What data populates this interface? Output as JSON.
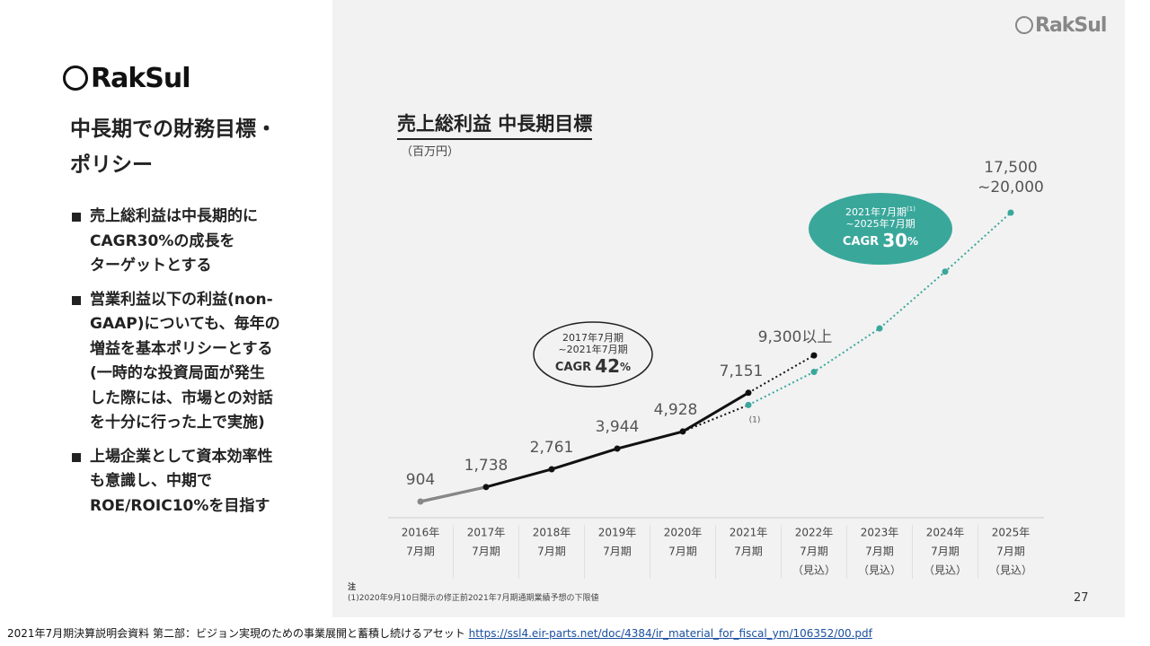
{
  "header": {
    "logo": "RakSul",
    "title_lines": [
      "中長期での財務目標・",
      "ポリシー"
    ]
  },
  "bullets": [
    [
      "売上総利益は中長期的に",
      "CAGR30%の成長を",
      "ターゲットとする"
    ],
    [
      "営業利益以下の利益(non-",
      "GAAP)についても、毎年の",
      "増益を基本ポリシーとする",
      "(一時的な投資局面が発生",
      "した際には、市場との対話",
      "を十分に行った上で実施)"
    ],
    [
      "上場企業として資本効率性",
      "も意識し、中期で",
      "ROE/ROIC10%を目指す"
    ]
  ],
  "slide": {
    "logo": "RakSul",
    "page_number": "27",
    "note_title": "注",
    "note": "(1)2020年9月10日開示の修正前2021年7月期通期業績予想の下限値"
  },
  "footer": {
    "text": "2021年7月期決算説明会資料 第二部：ビジョン実現のための事業展開と蓄積し続けるアセット",
    "link": "https://ssl4.eir-parts.net/doc/4384/ir_material_for_fiscal_ym/106352/00.pdf"
  },
  "chart_data": {
    "type": "line",
    "title": "売上総利益 中長期目標",
    "subtitle": "（百万円）",
    "categories": [
      [
        "2016年",
        "7月期"
      ],
      [
        "2017年",
        "7月期"
      ],
      [
        "2018年",
        "7月期"
      ],
      [
        "2019年",
        "7月期"
      ],
      [
        "2020年",
        "7月期"
      ],
      [
        "2021年",
        "7月期"
      ],
      [
        "2022年",
        "7月期",
        "（見込）"
      ],
      [
        "2023年",
        "7月期",
        "（見込）"
      ],
      [
        "2024年",
        "7月期",
        "（見込）"
      ],
      [
        "2025年",
        "7月期",
        "（見込）"
      ]
    ],
    "series": [
      {
        "color": "#111111",
        "style": "solid",
        "values": [
          904,
          1738,
          2761,
          3944,
          4928,
          7151,
          null,
          null,
          null,
          null
        ],
        "value_labels": [
          "904",
          "1,738",
          "2,761",
          "3,944",
          "4,928",
          "7,151",
          null,
          null,
          null,
          null
        ]
      },
      {
        "color": "#111111",
        "style": "dotted",
        "values": [
          null,
          null,
          null,
          null,
          null,
          null,
          9300,
          null,
          null,
          null
        ],
        "value_labels": [
          null,
          null,
          null,
          null,
          null,
          null,
          "9,300以上",
          null,
          null,
          null
        ]
      },
      {
        "color": "#3aa79b",
        "style": "dotted",
        "values": [
          null,
          null,
          null,
          null,
          null,
          6450,
          8350,
          10850,
          14110,
          17500
        ],
        "value_labels": [
          null,
          null,
          null,
          null,
          null,
          null,
          null,
          null,
          null,
          "17,500\n~20,000"
        ]
      }
    ],
    "annotations": [
      {
        "lines": [
          "2017年7月期",
          "~2021年7月期"
        ],
        "cagr": "CAGR",
        "rate": "42",
        "unit": "%"
      },
      {
        "lines": [
          "2021年7月期",
          "~2025年7月期"
        ],
        "sup": "(1)",
        "cagr": "CAGR",
        "rate": "30",
        "unit": "%"
      }
    ],
    "point_note": "(1)"
  }
}
